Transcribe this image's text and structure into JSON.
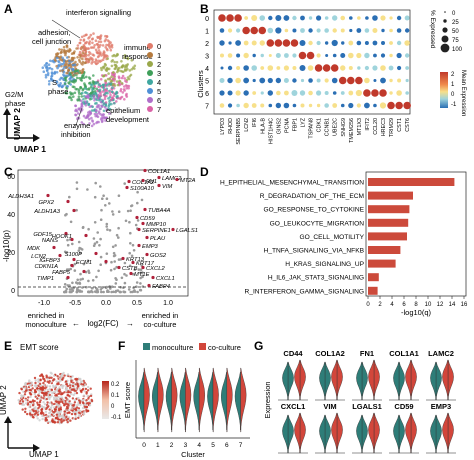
{
  "panels": {
    "A": {
      "letter": "A",
      "labels": [
        "interferon signalling",
        "adhesion,",
        "cell junction",
        "immune",
        "response",
        "S",
        "phase",
        "G2/M",
        "phase",
        "enzyme",
        "inhibition",
        "epithelium",
        "development"
      ],
      "axis_x": "UMAP 1",
      "axis_y": "UMAP 2",
      "legend": [
        "0",
        "1",
        "2",
        "3",
        "4",
        "5",
        "6",
        "7"
      ],
      "colors": [
        "#e07b6b",
        "#b57a3d",
        "#9aa84a",
        "#3f9f5a",
        "#3fa7a0",
        "#4f8fd6",
        "#b06ec9",
        "#d962a6"
      ]
    },
    "B": {
      "letter": "B",
      "ylabel": "Clusters",
      "clusters": [
        "0",
        "1",
        "2",
        "3",
        "4",
        "5",
        "6",
        "7"
      ],
      "genes": [
        "LYPD3",
        "RHOD",
        "SERPINB5",
        "LCN2",
        "IFI6",
        "HLA-B",
        "HIST1H4C",
        "GINS2",
        "PCNA",
        "FBP1",
        "LYZ",
        "TSPAN8",
        "CDK1",
        "CCNB1",
        "UBE2C",
        "SNHG9",
        "TMEM256",
        "MT1X3",
        "IFIT2",
        "CCL20",
        "HREC3",
        "TRIM29",
        "CST1",
        "CST6"
      ],
      "size_title": "% Expressed",
      "size_ticks": [
        "0",
        "25",
        "50",
        "75",
        "100"
      ],
      "color_title": "Mean Expression",
      "color_ticks": [
        "2",
        "1",
        "0",
        "-1"
      ]
    },
    "C": {
      "letter": "C",
      "ylabel": "-log10(p)",
      "xlabel": "log2(FC)",
      "xticks": [
        "-1.0",
        "-0.5",
        "0.0",
        "0.5",
        "1.0"
      ],
      "yticks": [
        "0",
        "20",
        "40",
        "60"
      ],
      "left_note": [
        "enriched in",
        "monoculture"
      ],
      "right_note": [
        "enriched in",
        "co-culture"
      ],
      "genes": [
        "COL1A1",
        "LAMC2",
        "FN1",
        "COL1A2",
        "S100A10",
        "VIM",
        "MT2A",
        "ALDH3A1",
        "GPX2",
        "ALDH1A3",
        "TUBA4A",
        "CD59",
        "MMP10",
        "SERPINE1",
        "GDF15",
        "NANS",
        "HOOK1",
        "PLAU",
        "LGALS1",
        "MDK",
        "EMP3",
        "LCN2",
        "S100P",
        "GOS2",
        "IGFBP3",
        "CDKN1A",
        "KRT17",
        "CXCL2",
        "CXCL1",
        "FABP4",
        "FABP5",
        "TIMP1",
        "MT1E",
        "KRT13",
        "ECM1",
        "CSTB"
      ]
    },
    "D": {
      "letter": "D",
      "xlabel": "-log10(q)",
      "xticks": [
        "0",
        "2",
        "4",
        "6",
        "8",
        "10",
        "12",
        "14",
        "16"
      ],
      "chart_data": {
        "type": "bar",
        "orientation": "horizontal",
        "xlabel": "-log10(q)",
        "xlim": [
          0,
          16
        ],
        "categories": [
          "H_EPITHELIAL_MESENCHYMAL_TRANSITION",
          "R_DEGRADATION_OF_THE_ECM",
          "GO_RESPONSE_TO_CYTOKINE",
          "GO_LEUKOCYTE_MIGRATION",
          "GO_CELL_MOTILITY",
          "H_TNFA_SIGNALING_VIA_NFKB",
          "H_KRAS_SIGNALING_UP",
          "H_IL6_JAK_STAT3_SIGNALING",
          "R_INTERFERON_GAMMA_SIGNALING"
        ],
        "values": [
          14.4,
          7.5,
          6.9,
          6.7,
          6.5,
          5.4,
          4.6,
          1.8,
          1.6
        ],
        "bar_color": "#cc4a3b"
      }
    },
    "E": {
      "letter": "E",
      "title": "EMT score",
      "axis_x": "UMAP 1",
      "axis_y": "UMAP 2",
      "scale_ticks": [
        "0.2",
        "0.1",
        "0",
        "-0.1"
      ]
    },
    "F": {
      "letter": "F",
      "legend": [
        "monoculture",
        "co-culture"
      ],
      "colors": [
        "#2e7d78",
        "#d2463b"
      ],
      "ylabel": "EMT score",
      "xlabel": "Cluster",
      "clusters": [
        "0",
        "1",
        "2",
        "3",
        "4",
        "5",
        "6",
        "7"
      ]
    },
    "G": {
      "letter": "G",
      "ylabel": "Expression",
      "genes": [
        "CD44",
        "COL1A2",
        "FN1",
        "COL1A1",
        "LAMC2",
        "CXCL1",
        "VIM",
        "LGALS1",
        "CD59",
        "EMP3"
      ]
    }
  }
}
